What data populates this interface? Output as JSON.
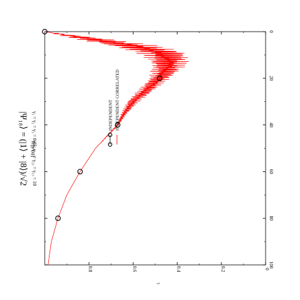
{
  "chart_data": {
    "type": "line",
    "title": "|Ψ₁₈⟩ = (|1⟩ + |8⟩)/√2",
    "subtitle": "γ₁ = γ₂ = γ₃ = 0.05;   γ₁₂ = γ₂₃ = γ₁₃ = 10",
    "xlabel": "τ",
    "ylabel": "Tr[ρ²(τ)]",
    "xlim": [
      0,
      100
    ],
    "ylim": [
      0,
      1
    ],
    "orientation": "rotated-90-clockwise",
    "x_ticks": [
      "0",
      "20",
      "40",
      "60",
      "80",
      "100"
    ],
    "y_ticks": [
      "0",
      "0.2",
      "0.4",
      "0.6",
      "0.8"
    ],
    "legend_position": "top-right",
    "series": [
      {
        "name": "INDEPENDENT",
        "style": "markers",
        "marker": "open-circle",
        "color": "#000000",
        "x": [
          0,
          20,
          40,
          60,
          80
        ],
        "y": [
          1.0,
          0.48,
          0.67,
          0.84,
          0.94
        ]
      },
      {
        "name": "INDEPENDENT CORRELATED",
        "style": "line",
        "color": "#ff0000",
        "x": [
          0,
          3,
          6,
          9,
          12,
          15,
          20,
          25,
          30,
          35,
          40,
          50,
          60,
          70,
          80,
          90,
          100
        ],
        "y": [
          1.0,
          0.8,
          0.6,
          0.47,
          0.44,
          0.44,
          0.48,
          0.54,
          0.6,
          0.64,
          0.67,
          0.77,
          0.84,
          0.9,
          0.94,
          0.97,
          0.985
        ],
        "oscillation_amplitude": [
          0,
          0.08,
          0.12,
          0.12,
          0.1,
          0.08,
          0.05,
          0.04,
          0.03,
          0.015,
          0.005,
          0,
          0,
          0,
          0,
          0,
          0
        ]
      }
    ]
  }
}
